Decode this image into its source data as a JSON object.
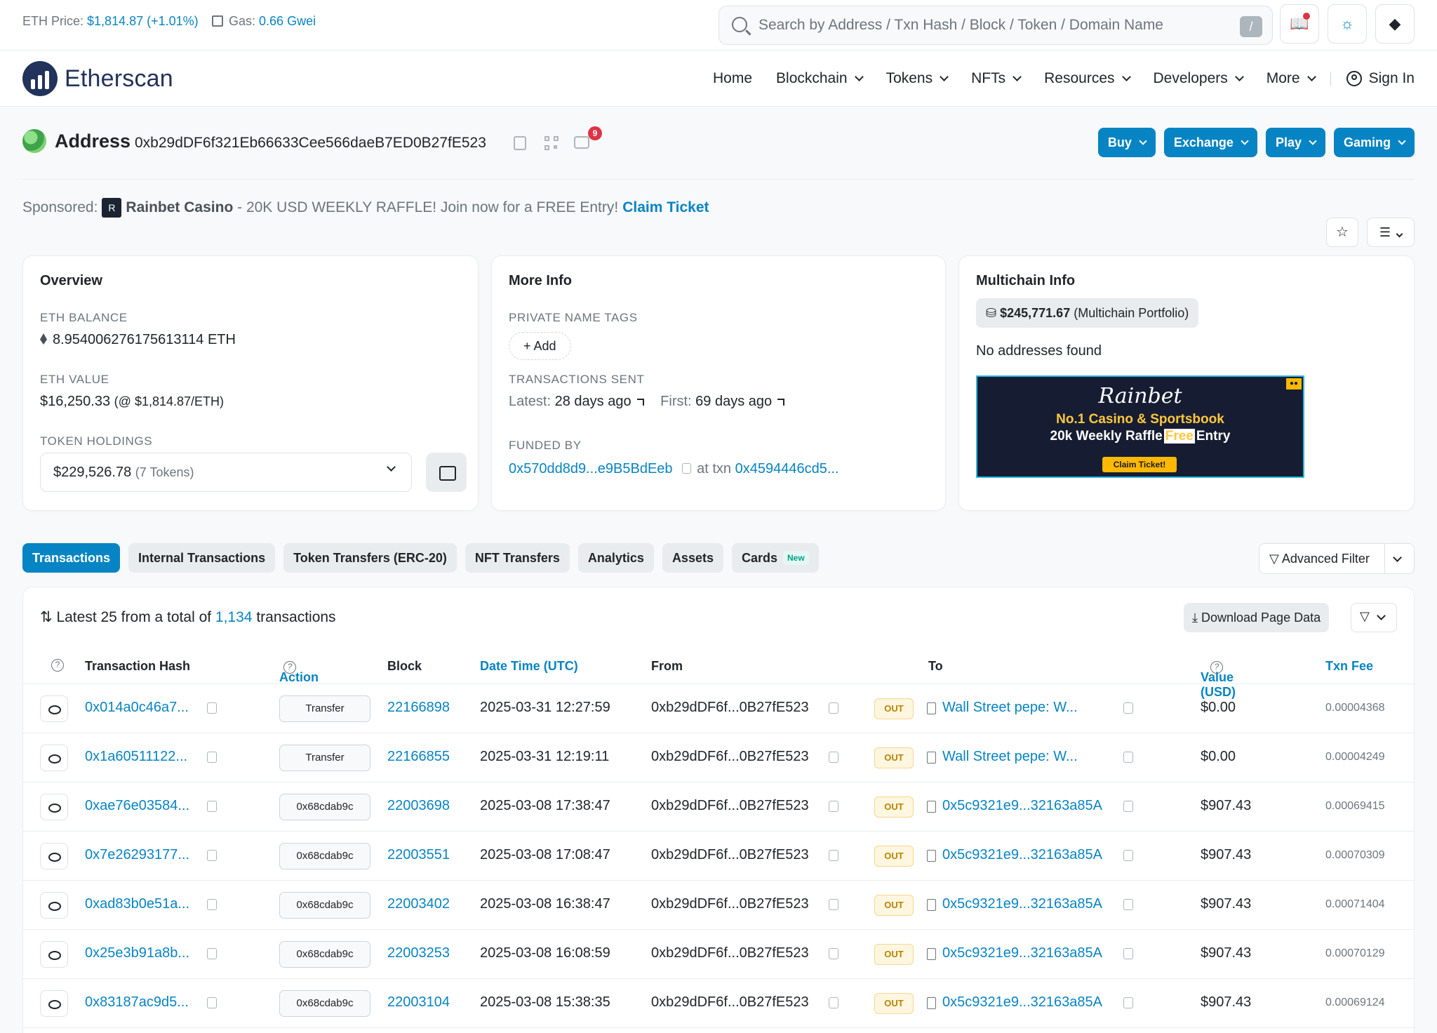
{
  "topbar": {
    "eth_price_label": "ETH Price:",
    "eth_price_value": "$1,814.87 (+1.01%)",
    "gas_label": "Gas:",
    "gas_value": "0.66 Gwei",
    "search_placeholder": "Search by Address / Txn Hash / Block / Token / Domain Name",
    "search_shortcut": "/"
  },
  "nav": {
    "brand": "Etherscan",
    "items": [
      "Home",
      "Blockchain",
      "Tokens",
      "NFTs",
      "Resources",
      "Developers",
      "More"
    ],
    "sign_in": "Sign In"
  },
  "address": {
    "title": "Address",
    "value": "0xb29dDF6f321Eb66633Cee566daeB7ED0B27fE523",
    "chat_badge": "9",
    "buttons": [
      "Buy",
      "Exchange",
      "Play",
      "Gaming"
    ]
  },
  "sponsor": {
    "prefix": "Sponsored:",
    "brand": "Rainbet Casino",
    "text": "- 20K USD WEEKLY RAFFLE! Join now for a FREE Entry!",
    "cta": "Claim Ticket"
  },
  "overview": {
    "title": "Overview",
    "eth_balance_label": "ETH BALANCE",
    "eth_balance": "8.954006276175613114 ETH",
    "eth_value_label": "ETH VALUE",
    "eth_value": "$16,250.33",
    "eth_value_rate": "(@ $1,814.87/ETH)",
    "token_holdings_label": "TOKEN HOLDINGS",
    "token_holdings_value": "$229,526.78",
    "token_holdings_count": "(7 Tokens)"
  },
  "more_info": {
    "title": "More Info",
    "private_tags_label": "PRIVATE NAME TAGS",
    "add_label": "+ Add",
    "txn_sent_label": "TRANSACTIONS SENT",
    "latest_label": "Latest:",
    "latest_value": "28 days ago",
    "first_label": "First:",
    "first_value": "69 days ago",
    "funded_by_label": "FUNDED BY",
    "funded_by_address": "0x570dd8d9...e9B5BdEeb",
    "at_txn_label": "at txn",
    "at_txn_value": "0x4594446cd5..."
  },
  "multichain": {
    "title": "Multichain Info",
    "portfolio_value": "$245,771.67",
    "portfolio_label": "(Multichain Portfolio)",
    "no_addresses": "No addresses found",
    "banner": {
      "brand": "Rainbet",
      "line1": "No.1 Casino & Sportsbook",
      "line2_a": "20k Weekly Raffle",
      "line2_b": "Free",
      "line2_c": "Entry",
      "cta": "Claim Ticket!"
    }
  },
  "tabs": [
    {
      "label": "Transactions"
    },
    {
      "label": "Internal Transactions"
    },
    {
      "label": "Token Transfers (ERC-20)"
    },
    {
      "label": "NFT Transfers"
    },
    {
      "label": "Analytics"
    },
    {
      "label": "Assets"
    },
    {
      "label": "Cards",
      "badge": "New"
    }
  ],
  "advanced_filter": "Advanced Filter",
  "txns": {
    "summary_prefix": "Latest 25 from a total of",
    "total": "1,134",
    "summary_suffix": "transactions",
    "download": "Download Page Data",
    "columns": {
      "hash": "Transaction Hash",
      "action": "Action",
      "block": "Block",
      "datetime": "Date Time (UTC)",
      "from": "From",
      "to": "To",
      "value": "Value (USD)",
      "fee": "Txn Fee"
    },
    "rows": [
      {
        "hash": "0x014a0c46a7...",
        "method": "Transfer",
        "block": "22166898",
        "datetime": "2025-03-31 12:27:59",
        "from": "0xb29dDF6f...0B27fE523",
        "dir": "OUT",
        "to": "Wall Street pepe: W...",
        "value": "$0.00",
        "fee": "0.00004368"
      },
      {
        "hash": "0x1a60511122...",
        "method": "Transfer",
        "block": "22166855",
        "datetime": "2025-03-31 12:19:11",
        "from": "0xb29dDF6f...0B27fE523",
        "dir": "OUT",
        "to": "Wall Street pepe: W...",
        "value": "$0.00",
        "fee": "0.00004249"
      },
      {
        "hash": "0xae76e03584...",
        "method": "0x68cdab9c",
        "block": "22003698",
        "datetime": "2025-03-08 17:38:47",
        "from": "0xb29dDF6f...0B27fE523",
        "dir": "OUT",
        "to": "0x5c9321e9...32163a85A",
        "value": "$907.43",
        "fee": "0.00069415"
      },
      {
        "hash": "0x7e26293177...",
        "method": "0x68cdab9c",
        "block": "22003551",
        "datetime": "2025-03-08 17:08:47",
        "from": "0xb29dDF6f...0B27fE523",
        "dir": "OUT",
        "to": "0x5c9321e9...32163a85A",
        "value": "$907.43",
        "fee": "0.00070309"
      },
      {
        "hash": "0xad83b0e51a...",
        "method": "0x68cdab9c",
        "block": "22003402",
        "datetime": "2025-03-08 16:38:47",
        "from": "0xb29dDF6f...0B27fE523",
        "dir": "OUT",
        "to": "0x5c9321e9...32163a85A",
        "value": "$907.43",
        "fee": "0.00071404"
      },
      {
        "hash": "0x25e3b91a8b...",
        "method": "0x68cdab9c",
        "block": "22003253",
        "datetime": "2025-03-08 16:08:59",
        "from": "0xb29dDF6f...0B27fE523",
        "dir": "OUT",
        "to": "0x5c9321e9...32163a85A",
        "value": "$907.43",
        "fee": "0.00070129"
      },
      {
        "hash": "0x83187ac9d5...",
        "method": "0x68cdab9c",
        "block": "22003104",
        "datetime": "2025-03-08 15:38:35",
        "from": "0xb29dDF6f...0B27fE523",
        "dir": "OUT",
        "to": "0x5c9321e9...32163a85A",
        "value": "$907.43",
        "fee": "0.00069124"
      }
    ]
  }
}
